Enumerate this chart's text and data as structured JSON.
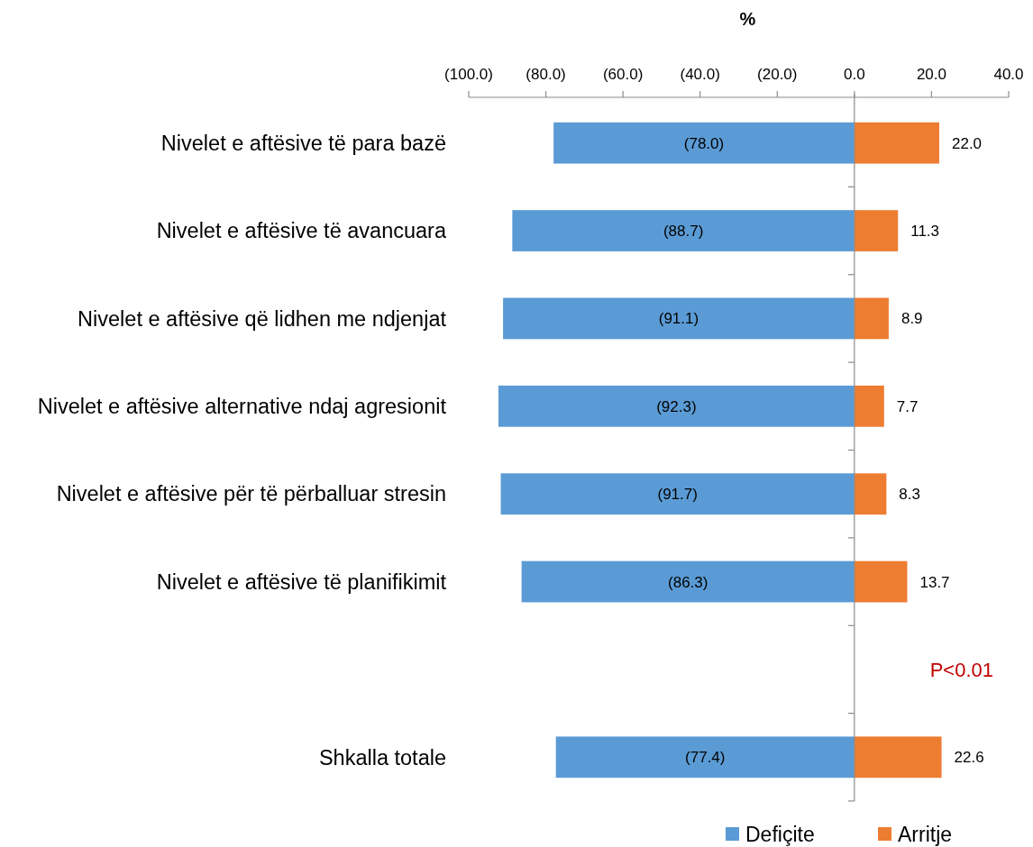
{
  "chart_data": {
    "type": "bar",
    "orientation": "horizontal",
    "stacked": true,
    "xlabel": "%",
    "categories": [
      "Nivelet e aftësive të para bazë",
      "Nivelet e aftësive të avancuara",
      "Nivelet e aftësive që lidhen me ndjenjat",
      "Nivelet e aftësive alternative ndaj agresionit",
      "Nivelet e aftësive për të përballuar stresin",
      "Nivelet e aftësive të planifikimit",
      null,
      "Shkalla totale"
    ],
    "xlim": [
      -100,
      40
    ],
    "xticks": [
      {
        "value": -100,
        "label": "(100.0)"
      },
      {
        "value": -80,
        "label": "(80.0)"
      },
      {
        "value": -60,
        "label": "(60.0)"
      },
      {
        "value": -40,
        "label": "(40.0)"
      },
      {
        "value": -20,
        "label": "(20.0)"
      },
      {
        "value": 0,
        "label": "0.0"
      },
      {
        "value": 20,
        "label": "20.0"
      },
      {
        "value": 40,
        "label": "40.0"
      }
    ],
    "series": [
      {
        "name": "Defiçite",
        "color": "#5b9bd5",
        "values": [
          -78.0,
          -88.7,
          -91.1,
          -92.3,
          -91.7,
          -86.3,
          null,
          -77.4
        ],
        "value_labels": [
          "(78.0)",
          "(88.7)",
          "(91.1)",
          "(92.3)",
          "(91.7)",
          "(86.3)",
          null,
          "(77.4)"
        ]
      },
      {
        "name": "Arritje",
        "color": "#ed7d31",
        "values": [
          22.0,
          11.3,
          8.9,
          7.7,
          8.3,
          13.7,
          null,
          22.6
        ],
        "value_labels": [
          "22.0",
          "11.3",
          "8.9",
          "7.7",
          "8.3",
          "13.7",
          null,
          "22.6"
        ]
      }
    ],
    "annotations": [
      "P<0.01"
    ],
    "legend": "bottom"
  }
}
